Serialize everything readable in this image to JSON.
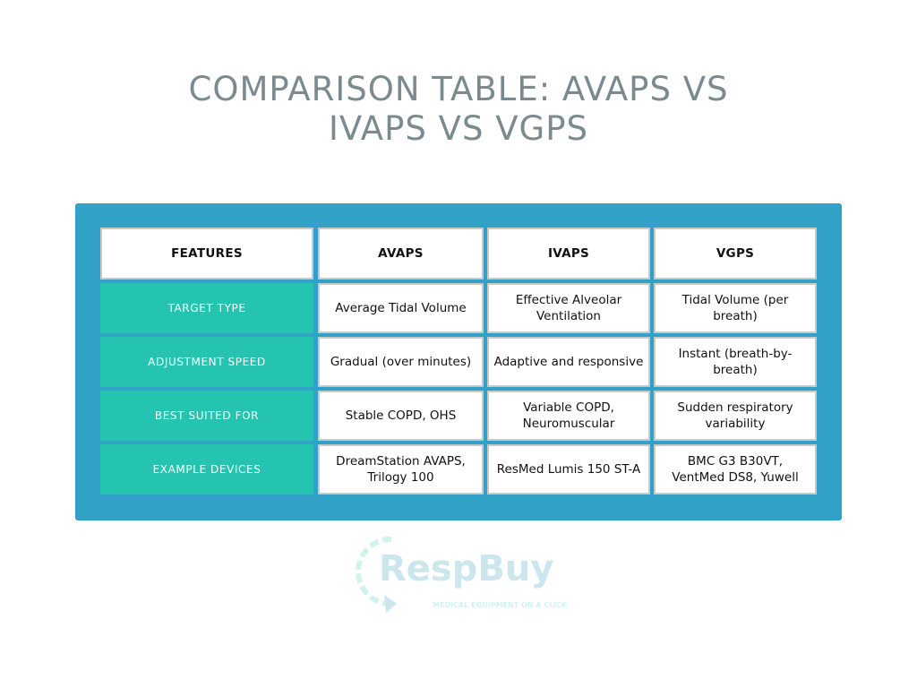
{
  "title": {
    "line1": "COMPARISON TABLE: AVAPS VS",
    "line2": "IVAPS VS VGPS"
  },
  "table": {
    "headers": [
      "FEATURES",
      "AVAPS",
      "IVAPS",
      "VGPS"
    ],
    "rows": [
      {
        "feature": "TARGET TYPE",
        "cells": [
          [
            "Average Tidal Volume"
          ],
          [
            "Effective Alveolar",
            "Ventilation"
          ],
          [
            "Tidal Volume (per breath)"
          ]
        ]
      },
      {
        "feature": "ADJUSTMENT SPEED",
        "cells": [
          [
            "Gradual (over minutes)"
          ],
          [
            "Adaptive and responsive"
          ],
          [
            "Instant (breath-by-breath)"
          ]
        ]
      },
      {
        "feature": "BEST SUITED FOR",
        "cells": [
          [
            "Stable COPD, OHS"
          ],
          [
            "Variable COPD,",
            "Neuromuscular"
          ],
          [
            "Sudden respiratory",
            "variability"
          ]
        ]
      },
      {
        "feature": "EXAMPLE DEVICES",
        "cells": [
          [
            "DreamStation AVAPS,",
            "Trilogy 100"
          ],
          [
            "ResMed Lumis 150 ST-A"
          ],
          [
            "BMC G3 B30VT,",
            "VentMed DS8, Yuwell"
          ]
        ]
      }
    ]
  },
  "watermark": {
    "brand": "RespBuy",
    "tagline": "MEDICAL EQUIPMENT ON A CLICK"
  },
  "colors": {
    "panel": "#31a1c8",
    "feature_cell": "#25c4b0",
    "title": "#7b8a8e"
  }
}
